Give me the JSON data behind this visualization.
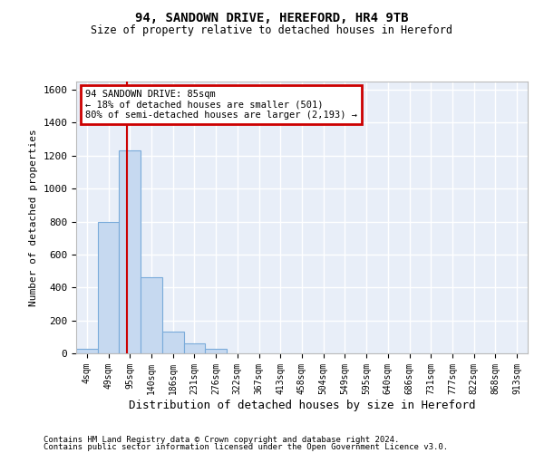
{
  "title_line1": "94, SANDOWN DRIVE, HEREFORD, HR4 9TB",
  "title_line2": "Size of property relative to detached houses in Hereford",
  "xlabel": "Distribution of detached houses by size in Hereford",
  "ylabel": "Number of detached properties",
  "footnote1": "Contains HM Land Registry data © Crown copyright and database right 2024.",
  "footnote2": "Contains public sector information licensed under the Open Government Licence v3.0.",
  "bin_labels": [
    "4sqm",
    "49sqm",
    "95sqm",
    "140sqm",
    "186sqm",
    "231sqm",
    "276sqm",
    "322sqm",
    "367sqm",
    "413sqm",
    "458sqm",
    "504sqm",
    "549sqm",
    "595sqm",
    "640sqm",
    "686sqm",
    "731sqm",
    "777sqm",
    "822sqm",
    "868sqm",
    "913sqm"
  ],
  "bar_heights": [
    30,
    800,
    1230,
    460,
    130,
    60,
    30,
    0,
    0,
    0,
    0,
    0,
    0,
    0,
    0,
    0,
    0,
    0,
    0,
    0,
    0
  ],
  "bar_color": "#c6d9f0",
  "bar_edge_color": "#7aabda",
  "ylim": [
    0,
    1650
  ],
  "yticks": [
    0,
    200,
    400,
    600,
    800,
    1000,
    1200,
    1400,
    1600
  ],
  "vline_x": 1.85,
  "vline_color": "#cc0000",
  "annotation_text": "94 SANDOWN DRIVE: 85sqm\n← 18% of detached houses are smaller (501)\n80% of semi-detached houses are larger (2,193) →",
  "annotation_box_color": "#cc0000",
  "bg_color": "#e8eef8",
  "grid_color": "#ffffff"
}
